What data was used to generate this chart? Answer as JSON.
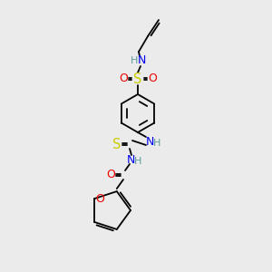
{
  "background_color": "#ebebeb",
  "colors": {
    "C": "#000000",
    "H": "#5a9a9a",
    "N": "#0000ee",
    "O": "#ee0000",
    "S": "#cccc00"
  },
  "figsize": [
    3.0,
    3.0
  ],
  "dpi": 100
}
